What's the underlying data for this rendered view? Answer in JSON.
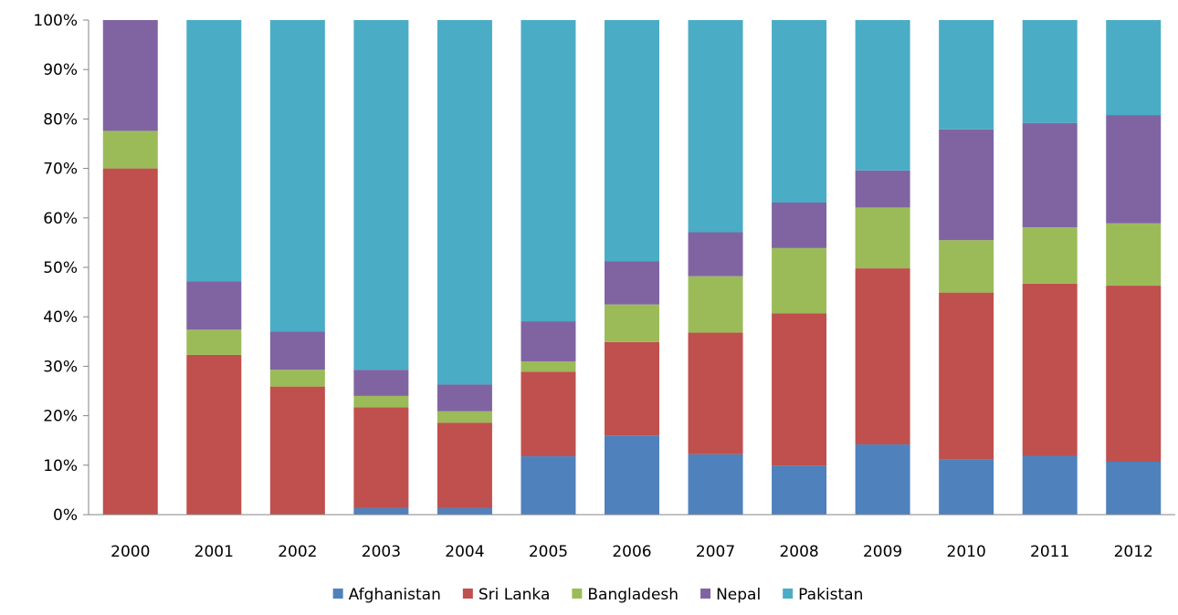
{
  "chart_data": {
    "type": "bar",
    "stacked": "percent",
    "title": "",
    "xlabel": "",
    "ylabel": "",
    "ylim": [
      0,
      100
    ],
    "grid": false,
    "legend_position": "bottom",
    "y_ticks": [
      "0%",
      "10%",
      "20%",
      "30%",
      "40%",
      "50%",
      "60%",
      "70%",
      "80%",
      "90%",
      "100%"
    ],
    "categories": [
      "2000",
      "2001",
      "2002",
      "2003",
      "2004",
      "2005",
      "2006",
      "2007",
      "2008",
      "2009",
      "2010",
      "2011",
      "2012"
    ],
    "series": [
      {
        "name": "Afghanistan",
        "color": "#4F81BD",
        "values": [
          0,
          0,
          0,
          1.3,
          1.3,
          11.8,
          16.0,
          12.2,
          9.9,
          14.2,
          11.1,
          11.9,
          10.7
        ]
      },
      {
        "name": "Sri Lanka",
        "color": "#C0504D",
        "values": [
          70.0,
          32.3,
          25.9,
          20.4,
          17.3,
          17.1,
          18.9,
          24.6,
          30.8,
          35.6,
          33.8,
          34.8,
          35.6
        ]
      },
      {
        "name": "Bangladesh",
        "color": "#9BBB59",
        "values": [
          7.6,
          5.1,
          3.4,
          2.3,
          2.3,
          2.1,
          7.6,
          11.4,
          13.2,
          12.3,
          10.6,
          11.4,
          12.6
        ]
      },
      {
        "name": "Nepal",
        "color": "#8064A2",
        "values": [
          22.4,
          9.8,
          7.7,
          5.3,
          5.4,
          8.1,
          8.7,
          8.9,
          9.2,
          7.5,
          22.4,
          21.1,
          21.9
        ]
      },
      {
        "name": "Pakistan",
        "color": "#4BACC6",
        "values": [
          0,
          52.8,
          63.0,
          70.7,
          73.7,
          60.9,
          48.8,
          42.9,
          36.9,
          30.4,
          22.1,
          20.8,
          19.2
        ]
      }
    ]
  }
}
